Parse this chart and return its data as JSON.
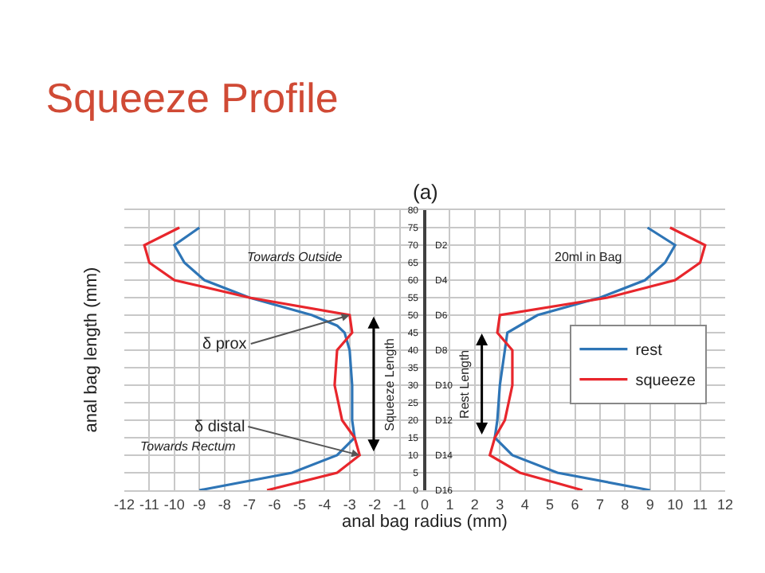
{
  "chart_data": {
    "type": "line",
    "title": "Squeeze Profile",
    "xlabel": "anal bag radius (mm)",
    "ylabel": "anal bag length (mm)",
    "xlim": [
      -12,
      12
    ],
    "xticks": [
      -12,
      -11,
      -10,
      -9,
      -8,
      -7,
      -6,
      -5,
      -4,
      -3,
      -2,
      -1,
      0,
      1,
      2,
      3,
      4,
      5,
      6,
      7,
      8,
      9,
      10,
      11,
      12
    ],
    "ylim": [
      0,
      80
    ],
    "yticks": [
      0,
      5,
      10,
      15,
      20,
      25,
      30,
      35,
      40,
      45,
      50,
      55,
      60,
      65,
      70,
      75,
      80
    ],
    "grid": true,
    "legend": "right",
    "marker": "none",
    "line_style": "solid",
    "series": [
      {
        "color": "#2e75b6",
        "x": [
          -9,
          -10,
          -9.6,
          -8.8,
          -7,
          -4.5,
          -3.5,
          -3.2,
          -3,
          -2.9,
          -2.9,
          -2.8,
          -3.5,
          -5.3,
          -9
        ],
        "values": [
          75,
          70,
          65,
          60,
          55,
          50,
          47,
          45,
          40,
          30,
          20,
          15,
          10,
          5,
          0
        ]
      },
      {
        "color": "#e8262c",
        "x": [
          -9.8,
          -11.2,
          -11,
          -10,
          -7,
          -3,
          -2.9,
          -3.5,
          -3.6,
          -3.3,
          -2.8,
          -2.6,
          -3.5,
          -6.3
        ],
        "values": [
          75,
          70,
          65,
          60,
          55,
          50,
          45,
          40,
          30,
          20,
          15,
          10,
          5,
          0
        ]
      },
      {
        "name": "rest",
        "color": "#2e75b6",
        "x": [
          8.9,
          10,
          9.6,
          8.8,
          7,
          4.5,
          3.3,
          3.2,
          3,
          2.9,
          2.8,
          3.5,
          5.3,
          9
        ],
        "values": [
          75,
          70,
          65,
          60,
          55,
          50,
          45,
          40,
          30,
          20,
          15,
          10,
          5,
          0
        ]
      },
      {
        "name": "squeeze",
        "color": "#e8262c",
        "x": [
          9.8,
          11.2,
          11,
          10,
          7.3,
          3,
          2.9,
          3.5,
          3.5,
          3.2,
          2.8,
          2.6,
          3.8,
          6.3
        ],
        "values": [
          75,
          70,
          65,
          60,
          55,
          50,
          45,
          40,
          30,
          20,
          15,
          10,
          5,
          0
        ]
      }
    ],
    "annotations": [
      "(a)",
      "Towards Outside",
      "20ml in Bag",
      "Towards Rectum",
      "Squeeze Length",
      "Rest Length",
      "D2",
      "D4",
      "D6",
      "D8",
      "D10",
      "D12",
      "D14",
      "D16",
      {
        "text": "δ prox",
        "x": -3,
        "y": 50
      },
      {
        "text": "δ distal",
        "x": -2.6,
        "y": 10
      }
    ]
  }
}
